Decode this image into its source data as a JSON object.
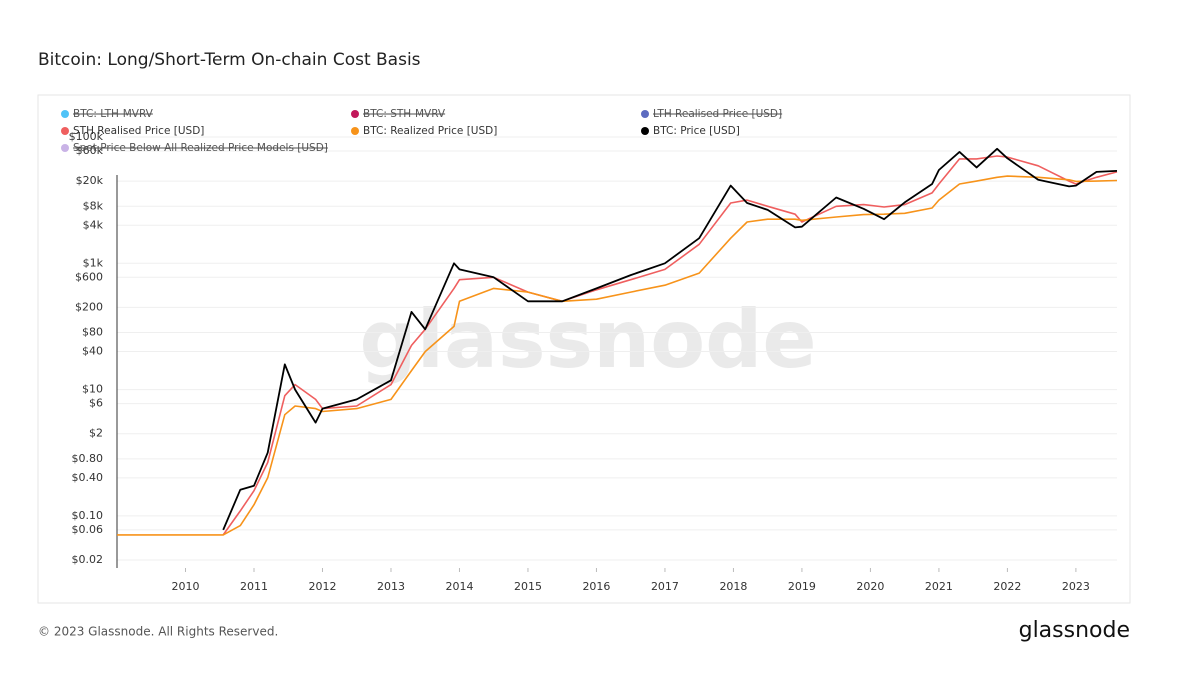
{
  "chart_data": {
    "type": "line",
    "title": "Bitcoin: Long/Short-Term On-chain Cost Basis",
    "watermark": "glassnode",
    "footer": "© 2023 Glassnode. All Rights Reserved.",
    "logo": "glassnode",
    "log_scale": true,
    "grid": true,
    "x": [
      2009.0,
      2010.55,
      2010.8,
      2011.0,
      2011.2,
      2011.45,
      2011.6,
      2011.9,
      2012.0,
      2012.5,
      2013.0,
      2013.3,
      2013.5,
      2013.92,
      2014.0,
      2014.5,
      2015.0,
      2015.5,
      2016.0,
      2016.5,
      2017.0,
      2017.5,
      2017.96,
      2018.2,
      2018.5,
      2018.9,
      2019.0,
      2019.5,
      2019.9,
      2020.2,
      2020.5,
      2020.9,
      2021.0,
      2021.3,
      2021.55,
      2021.85,
      2022.0,
      2022.45,
      2022.9,
      2023.0,
      2023.3,
      2023.6
    ],
    "series": [
      {
        "name": "STH Realised Price [USD]",
        "color": "#ef5f5f",
        "values": [
          null,
          0.05,
          0.12,
          0.25,
          0.7,
          8,
          12,
          7,
          5,
          5.5,
          12,
          50,
          90,
          400,
          550,
          600,
          350,
          250,
          380,
          550,
          800,
          2000,
          9000,
          10000,
          8000,
          6000,
          4500,
          8000,
          8500,
          7800,
          8500,
          13000,
          18000,
          45000,
          45000,
          50000,
          48000,
          35000,
          20000,
          18000,
          23000,
          28000
        ]
      },
      {
        "name": "BTC: Realized Price [USD]",
        "color": "#f7931a",
        "values": [
          0.05,
          0.05,
          0.07,
          0.15,
          0.4,
          4,
          5.5,
          5,
          4.5,
          5,
          7,
          20,
          40,
          100,
          250,
          400,
          350,
          250,
          270,
          350,
          450,
          700,
          2500,
          4500,
          5000,
          5000,
          4800,
          5400,
          5900,
          6000,
          6200,
          7500,
          10000,
          18000,
          20000,
          23000,
          24000,
          23000,
          21000,
          19800,
          20000,
          20500
        ]
      },
      {
        "name": "BTC: Price [USD]",
        "color": "#000000",
        "values": [
          null,
          0.06,
          0.26,
          0.3,
          1,
          25,
          10,
          3,
          5,
          7,
          14,
          170,
          90,
          1000,
          800,
          600,
          250,
          250,
          400,
          650,
          1000,
          2500,
          17000,
          9000,
          7000,
          3700,
          3800,
          11000,
          7300,
          5000,
          9200,
          18000,
          30000,
          58000,
          33000,
          65000,
          46000,
          21000,
          16500,
          17000,
          28000,
          29000
        ]
      }
    ],
    "hidden_series": [
      {
        "name": "BTC: LTH-MVRV",
        "color": "#4fc3f7"
      },
      {
        "name": "BTC: STH-MVRV",
        "color": "#c2185b"
      },
      {
        "name": "LTH Realised Price [USD]",
        "color": "#5c6bc0"
      },
      {
        "name": "Spot Price Below All Realized Price Models [USD]",
        "color": "#c9b3e6"
      }
    ],
    "xlim": [
      2009.0,
      2023.6
    ],
    "xticks": [
      2010,
      2011,
      2012,
      2013,
      2014,
      2015,
      2016,
      2017,
      2018,
      2019,
      2020,
      2021,
      2022,
      2023
    ],
    "ylim": [
      0.02,
      100000
    ],
    "yticks": [
      {
        "value": 0.02,
        "label": "$0.02"
      },
      {
        "value": 0.06,
        "label": "$0.06"
      },
      {
        "value": 0.1,
        "label": "$0.10"
      },
      {
        "value": 0.4,
        "label": "$0.40"
      },
      {
        "value": 0.8,
        "label": "$0.80"
      },
      {
        "value": 2,
        "label": "$2"
      },
      {
        "value": 6,
        "label": "$6"
      },
      {
        "value": 10,
        "label": "$10"
      },
      {
        "value": 40,
        "label": "$40"
      },
      {
        "value": 80,
        "label": "$80"
      },
      {
        "value": 200,
        "label": "$200"
      },
      {
        "value": 600,
        "label": "$600"
      },
      {
        "value": 1000,
        "label": "$1k"
      },
      {
        "value": 4000,
        "label": "$4k"
      },
      {
        "value": 8000,
        "label": "$8k"
      },
      {
        "value": 20000,
        "label": "$20k"
      },
      {
        "value": 60000,
        "label": "$60k"
      },
      {
        "value": 100000,
        "label": "$100k"
      }
    ]
  }
}
